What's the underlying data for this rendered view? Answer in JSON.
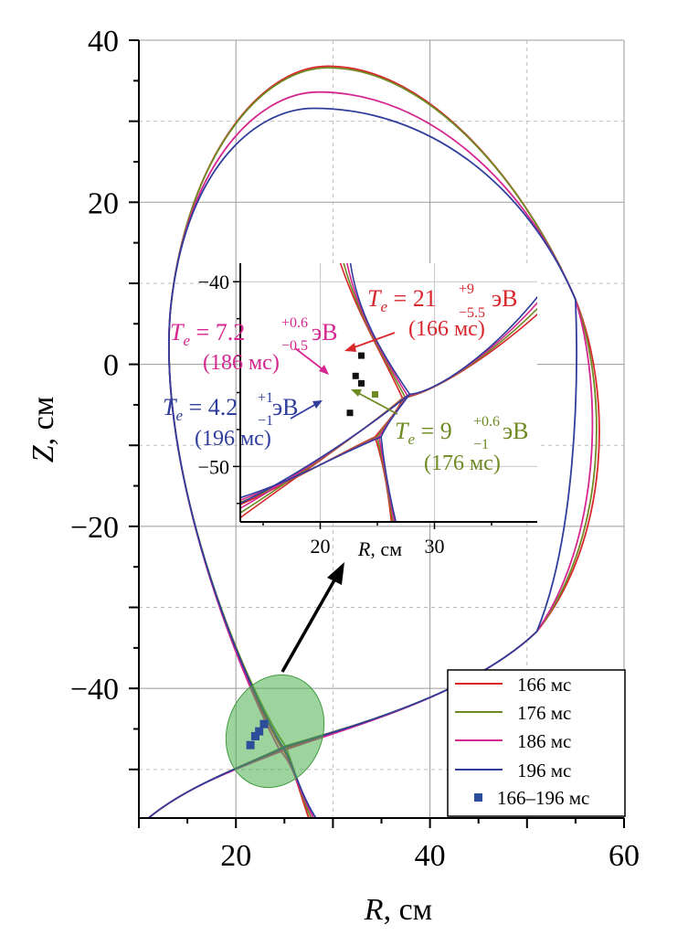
{
  "chart_data": {
    "type": "line",
    "xlabel_var": "R",
    "xlabel_unit": ", см",
    "ylabel_var": "Z",
    "ylabel_unit": ", см",
    "xlim": [
      10,
      60
    ],
    "ylim": [
      -56,
      40
    ],
    "x_ticks": [
      20,
      40,
      60
    ],
    "y_ticks": [
      40,
      20,
      0,
      -20,
      -40
    ],
    "grid": true,
    "legend_position": "bottom-right",
    "series": [
      {
        "name": "166 мс",
        "color": "#d9262b",
        "style": "line"
      },
      {
        "name": "176 мс",
        "color": "#6e8a22",
        "style": "line"
      },
      {
        "name": "186 мс",
        "color": "#d6268f",
        "style": "line"
      },
      {
        "name": "196 мс",
        "color": "#2f3d9c",
        "style": "line"
      },
      {
        "name": "166–196 мс",
        "color": "#2b4d9a",
        "style": "marker"
      }
    ],
    "measurement_points": [
      {
        "r": 22.9,
        "z": -44.4
      },
      {
        "r": 22.4,
        "z": -45.3
      },
      {
        "r": 22.0,
        "z": -45.9
      },
      {
        "r": 21.5,
        "z": -47.0
      }
    ],
    "inset": {
      "xlim": [
        13,
        39
      ],
      "ylim": [
        -53,
        -39
      ],
      "x_ticks": [
        20,
        30
      ],
      "y_ticks": [
        -40,
        -50
      ],
      "xlabel_var": "R",
      "xlabel_unit": ", см",
      "points": [
        {
          "r": 23.6,
          "z": -44.0,
          "color": "#111111"
        },
        {
          "r": 23.1,
          "z": -45.1,
          "color": "#111111"
        },
        {
          "r": 23.6,
          "z": -45.5,
          "color": "#111111"
        },
        {
          "r": 22.6,
          "z": -47.1,
          "color": "#111111"
        },
        {
          "r": 24.8,
          "z": -46.1,
          "color": "#6e8a22"
        }
      ],
      "annotations": [
        {
          "main": "21",
          "sup": "+9",
          "sub": "−5.5",
          "unit": " эВ",
          "time": "(166 мс)",
          "color": "#d9262b"
        },
        {
          "main": "7.2",
          "sup": "+0.6",
          "sub": "−0.5",
          "unit": " эВ",
          "time": "(186 мс)",
          "color": "#d6268f"
        },
        {
          "main": "4.2",
          "sup": "+1",
          "sub": "−1",
          "unit": " эВ",
          "time": "(196 мс)",
          "color": "#2f3d9c"
        },
        {
          "main": "9",
          "sup": "+0.6",
          "sub": "−1",
          "unit": " эВ",
          "time": "(176 мс)",
          "color": "#6e8a22"
        }
      ]
    }
  }
}
